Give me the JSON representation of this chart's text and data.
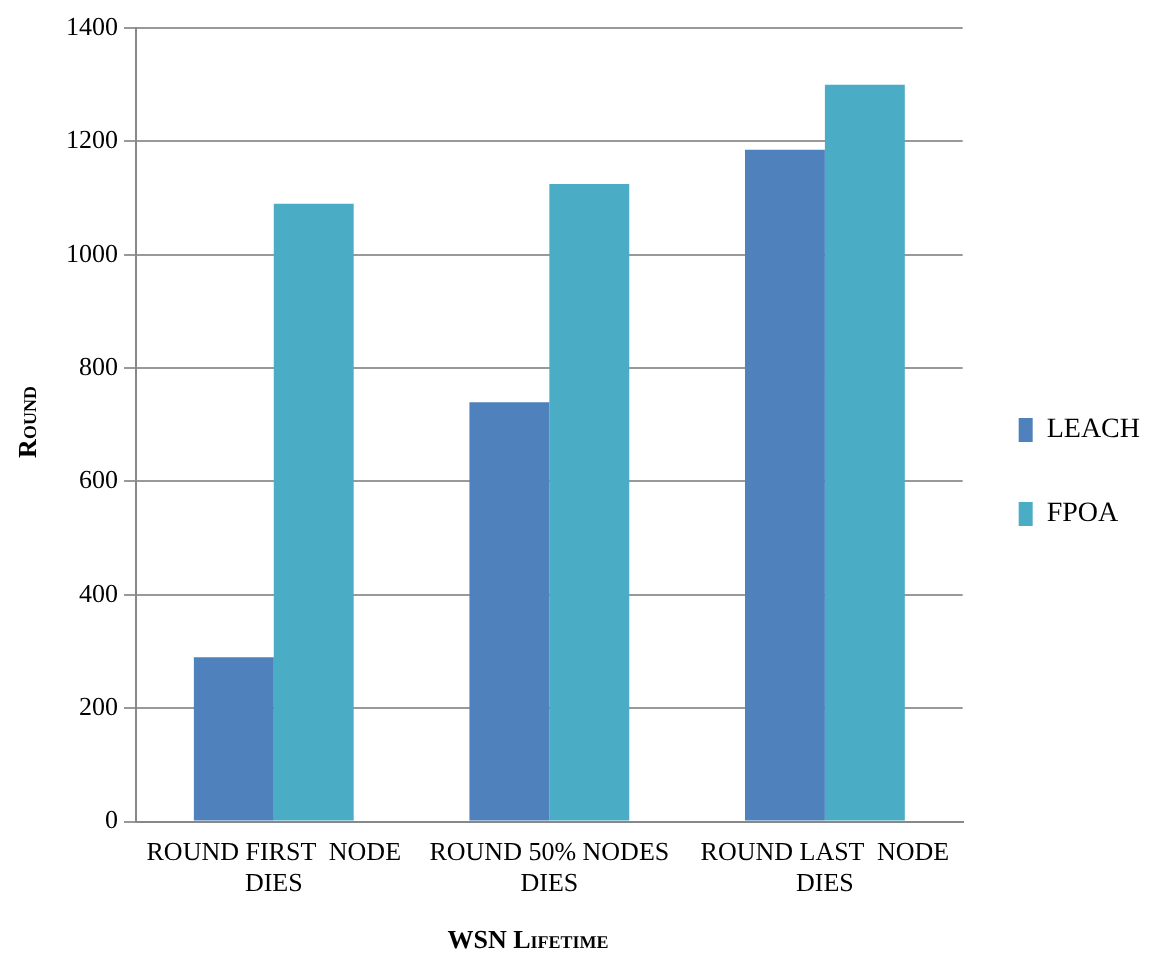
{
  "chart_data": {
    "type": "bar",
    "xlabel": "WSN Lifetime",
    "ylabel": "Round",
    "categories": [
      "ROUND FIRST  NODE DIES",
      "ROUND 50% NODES DIES",
      "ROUND LAST  NODE DIES"
    ],
    "series": [
      {
        "name": "LEACH",
        "color": "#4f81bd",
        "values": [
          290,
          740,
          1185
        ]
      },
      {
        "name": "FPOA",
        "color": "#4bacc6",
        "values": [
          1090,
          1125,
          1300
        ]
      }
    ],
    "ylim": [
      0,
      1400
    ],
    "yticks": [
      0,
      200,
      400,
      600,
      800,
      1000,
      1200,
      1400
    ],
    "grid": "y",
    "legend": "right"
  }
}
